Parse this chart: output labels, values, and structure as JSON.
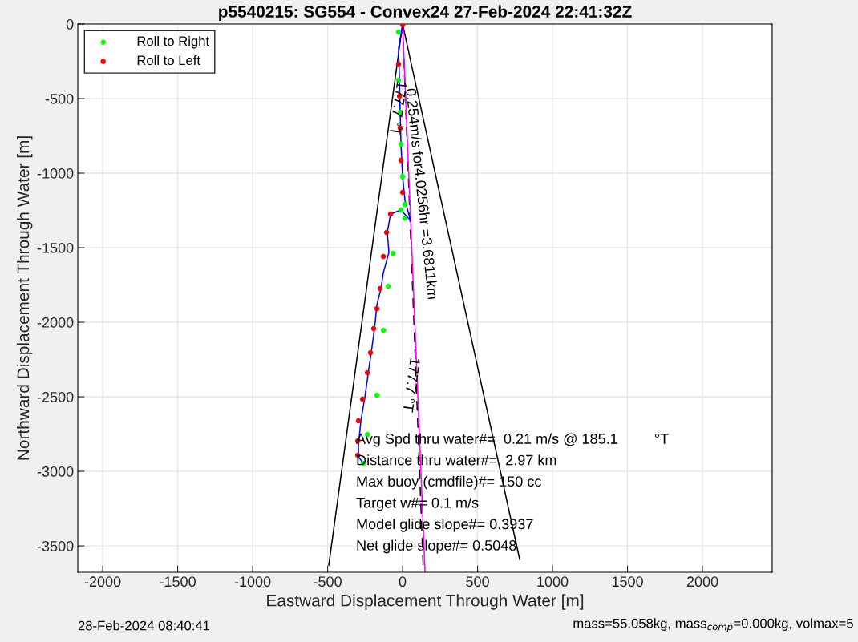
{
  "chart_data": {
    "type": "scatter",
    "title": "p5540215: SG554 - Convex24 27-Feb-2024 22:41:32Z",
    "xlabel": "Eastward Displacement Through Water [m]",
    "ylabel": "Northward Displacement Through Water [m]",
    "xlim": [
      -2166,
      2465
    ],
    "ylim": [
      -3677,
      0
    ],
    "xticks": [
      -2000,
      -1500,
      -1000,
      -500,
      0,
      500,
      1000,
      1500,
      2000
    ],
    "yticks": [
      -3500,
      -3000,
      -2500,
      -2000,
      -1500,
      -1000,
      -500,
      0
    ],
    "grid": true,
    "legend": "top left",
    "marker": "circle",
    "series": [
      {
        "type": "line",
        "marker": "none",
        "color": "#000000",
        "x": [
          0,
          -492
        ],
        "values": [
          0,
          -3629
        ]
      },
      {
        "type": "line",
        "marker": "none",
        "color": "#000000",
        "x": [
          0,
          781
        ],
        "values": [
          0,
          -3591
        ]
      },
      {
        "type": "line",
        "marker": "none",
        "color": "#000000",
        "line_style": "dashed",
        "x": [
          0,
          139
        ],
        "values": [
          0,
          -3677
        ]
      },
      {
        "type": "line",
        "marker": "none",
        "color": "#ff00ff",
        "x": [
          0,
          150
        ],
        "values": [
          0,
          -3677
        ]
      },
      {
        "type": "line",
        "marker": "none",
        "color": "#0000ff",
        "x": [
          0,
          -27,
          -21,
          -16,
          -11,
          0,
          16,
          53,
          -11,
          -80,
          -102,
          -91,
          -128,
          -144,
          -171,
          -187,
          -209,
          -225,
          -251,
          -278,
          -294,
          -294,
          -262
        ],
        "values": [
          -11,
          -161,
          -376,
          -591,
          -806,
          -1022,
          -1183,
          -1317,
          -1247,
          -1274,
          -1398,
          -1532,
          -1667,
          -1774,
          -1882,
          -2043,
          -2204,
          -2312,
          -2500,
          -2661,
          -2823,
          -2903,
          -2946
        ]
      },
      {
        "name": "Roll to Right",
        "color": "#00ff00",
        "x": [
          -27,
          -27,
          -16,
          -11,
          0,
          16,
          -11,
          16,
          -64,
          -96,
          -128,
          -171,
          -235,
          -262
        ],
        "values": [
          -54,
          -376,
          -591,
          -806,
          -1022,
          -1210,
          -1247,
          -1301,
          -1538,
          -1758,
          -2054,
          -2489,
          -2753,
          -2946
        ]
      },
      {
        "name": "Roll to Left",
        "color": "#ff0000",
        "x": [
          0,
          -27,
          -21,
          -16,
          -11,
          0,
          -80,
          -107,
          -128,
          -150,
          -171,
          -193,
          -214,
          -235,
          -267,
          -294,
          -299,
          -299
        ],
        "values": [
          -5,
          -269,
          -484,
          -699,
          -914,
          -1129,
          -1274,
          -1398,
          -1559,
          -1774,
          -1909,
          -2043,
          -2204,
          -2339,
          -2516,
          -2661,
          -2796,
          -2892
        ]
      }
    ],
    "annotations": [
      {
        "text": "177.7 °T",
        "x": -37,
        "y": -565
      },
      {
        "text": "0.254m/s for4.0256hr =3.6811km",
        "x": 47,
        "y": -1140
      },
      "177.7 °T",
      "Avg Spd thru water#=  0.21 m/s @ 185.1         °T",
      "Distance thru water#=  2.97 km",
      "Max buoy (cmdfile)#= 150 cc",
      "Target w#= 0.1 m/s",
      "Model glide slope#= 0.3937",
      "Net glide slope#= 0.5048",
      "28-Feb-2024 08:40:41",
      "mass=55.058kg, mass$_{comp}$=0.000kg, volmax=5"
    ]
  }
}
